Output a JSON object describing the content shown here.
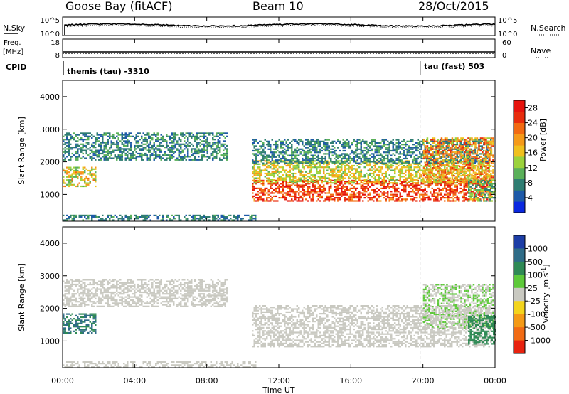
{
  "header": {
    "station": "Goose Bay (fitACF)",
    "beam": "Beam 10",
    "date": "28/Oct/2015"
  },
  "noise_panel": {
    "left_label": "N.Sky",
    "right_label": "N.Search",
    "left_ticks": [
      "10^5",
      "10^0"
    ],
    "right_ticks": [
      "10^5",
      "10^0"
    ],
    "right_legend_line": "dotted"
  },
  "freq_panel": {
    "left_label_line1": "Freq.",
    "left_label_line2": "[MHz]",
    "left_ticks": [
      "18",
      "8"
    ],
    "right_label": "Nave",
    "right_ticks": [
      "60",
      "0"
    ],
    "cpid_label": "CPID",
    "cpid_segments": [
      {
        "text": "themis (tau) -3310",
        "start_hour": 0
      },
      {
        "text": "tau (fast) 503",
        "start_hour": 20
      }
    ]
  },
  "x_axis": {
    "label": "Time UT",
    "ticks": [
      "00:00",
      "04:00",
      "08:00",
      "12:00",
      "16:00",
      "20:00",
      "00:00"
    ],
    "range_hours": [
      0,
      24
    ]
  },
  "chart_data": [
    {
      "type": "heatmap",
      "name": "power",
      "xlabel": "Time UT",
      "ylabel": "Slant Range [km]",
      "xlim": [
        0,
        24
      ],
      "ylim": [
        180,
        4500
      ],
      "y_ticks": [
        "1000",
        "2000",
        "3000",
        "4000"
      ],
      "colorbar_label": "Power [dB]",
      "colorbar_ticks": [
        "4",
        "8",
        "12",
        "16",
        "20",
        "24",
        "28"
      ],
      "colorbar_range": [
        0,
        30
      ],
      "colorbar_colors": [
        "#0a28e0",
        "#1e5aa8",
        "#2f7d72",
        "#5ab05a",
        "#9bd23c",
        "#f0c01e",
        "#f59a19",
        "#f26a12",
        "#e82d0d",
        "#e6130d"
      ],
      "regions": [
        {
          "t": [
            0.0,
            1.8
          ],
          "r": [
            1250,
            1850
          ],
          "v": [
            9,
            22
          ]
        },
        {
          "t": [
            0.0,
            9.1
          ],
          "r": [
            2050,
            2900
          ],
          "v": [
            4,
            11
          ]
        },
        {
          "t": [
            0.0,
            10.7
          ],
          "r": [
            220,
            380
          ],
          "v": [
            4,
            10
          ]
        },
        {
          "t": [
            10.5,
            23.8
          ],
          "r": [
            780,
            1450
          ],
          "v": [
            20,
            30
          ]
        },
        {
          "t": [
            10.5,
            23.8
          ],
          "r": [
            1350,
            2050
          ],
          "v": [
            11,
            20
          ]
        },
        {
          "t": [
            10.5,
            23.8
          ],
          "r": [
            1950,
            2700
          ],
          "v": [
            4,
            11
          ]
        },
        {
          "t": [
            20.0,
            23.9
          ],
          "r": [
            1400,
            2750
          ],
          "v": [
            14,
            26
          ]
        },
        {
          "t": [
            22.5,
            24.0
          ],
          "r": [
            800,
            1450
          ],
          "v": [
            6,
            16
          ]
        }
      ]
    },
    {
      "type": "heatmap",
      "name": "velocity",
      "xlabel": "Time UT",
      "ylabel": "Slant Range [km]",
      "xlim": [
        0,
        24
      ],
      "ylim": [
        180,
        4500
      ],
      "y_ticks": [
        "1000",
        "2000",
        "3000",
        "4000"
      ],
      "colorbar_label": "Velocity [m s^-1]",
      "colorbar_ticks": [
        "1000",
        "500",
        "100",
        "25",
        "-25",
        "-100",
        "-500",
        "-1000"
      ],
      "colorbar_colors": [
        "#1d3ea6",
        "#2f6c87",
        "#2f8a55",
        "#5ec93a",
        "#c9c9c1",
        "#f3d41c",
        "#f49a16",
        "#f16b14",
        "#e8220f"
      ],
      "regions": [
        {
          "t": [
            0.0,
            1.8
          ],
          "r": [
            1250,
            1850
          ],
          "v": [
            200,
            900
          ]
        },
        {
          "t": [
            0.0,
            9.1
          ],
          "r": [
            2050,
            2900
          ],
          "v": [
            -25,
            25
          ]
        },
        {
          "t": [
            0.0,
            10.7
          ],
          "r": [
            220,
            380
          ],
          "v": [
            -25,
            25
          ]
        },
        {
          "t": [
            10.5,
            23.8
          ],
          "r": [
            850,
            2100
          ],
          "v": [
            -25,
            25
          ]
        },
        {
          "t": [
            20.0,
            23.9
          ],
          "r": [
            1400,
            2750
          ],
          "v": [
            -25,
            60
          ]
        },
        {
          "t": [
            22.5,
            24.0
          ],
          "r": [
            900,
            1800
          ],
          "v": [
            100,
            450
          ]
        }
      ]
    }
  ],
  "colors": {
    "ground_scatter": "#c9c9c1"
  }
}
